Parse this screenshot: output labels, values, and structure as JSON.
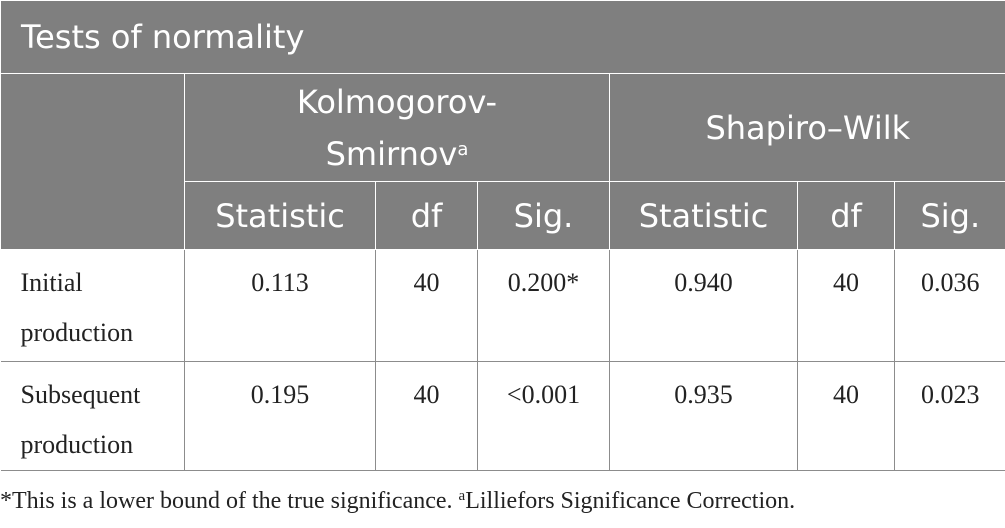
{
  "table": {
    "title": "Tests of normality",
    "group_headers": {
      "ks_main": "Kolmogorov-",
      "ks_line2": "Smirnov",
      "ks_sup": "a",
      "sw": "Shapiro–Wilk"
    },
    "sub_headers": [
      "Statistic",
      "df",
      "Sig.",
      "Statistic",
      "df",
      "Sig."
    ],
    "rows": [
      {
        "label_line1": "Initial",
        "label_line2": "production",
        "values": [
          "0.113",
          "40",
          "0.200*",
          "0.940",
          "40",
          "0.036"
        ]
      },
      {
        "label_line1": "Subsequent",
        "label_line2": "production",
        "values": [
          "0.195",
          "40",
          "<0.001",
          "0.935",
          "40",
          "0.023"
        ]
      }
    ]
  },
  "footnote": {
    "part1": "*This is a lower bound of the true significance. ",
    "sup": "a",
    "part2": "Lilliefors Significance Correction."
  }
}
